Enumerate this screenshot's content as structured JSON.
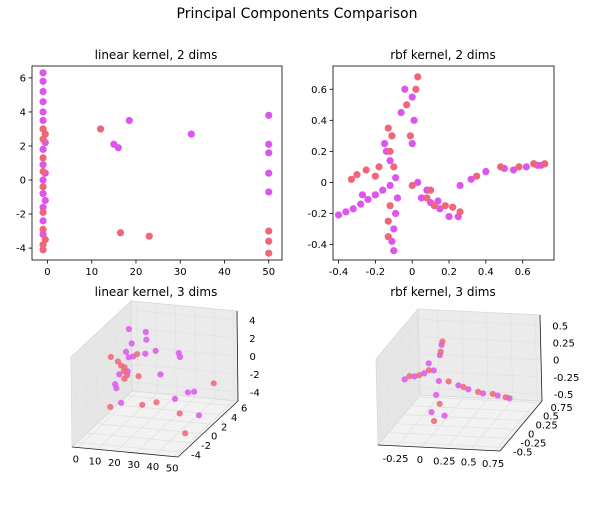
{
  "figure": {
    "title": "Principal Components Comparison",
    "colors": {
      "pink": "#ee6677",
      "magenta": "#dd55ee",
      "pane": "#f2f2f2",
      "grid": "#e2e2e2"
    }
  },
  "chart_data": [
    {
      "type": "scatter",
      "title": "linear kernel, 2 dims",
      "xlim": [
        -3.5,
        53
      ],
      "ylim": [
        -4.7,
        6.7
      ],
      "xticks": [
        0,
        10,
        20,
        30,
        40,
        50
      ],
      "yticks": [
        -4,
        -2,
        0,
        2,
        4,
        6
      ],
      "series": [
        {
          "color": "#dd55ee",
          "points": [
            [
              -1,
              6.3
            ],
            [
              -1,
              5.8
            ],
            [
              -1,
              5.2
            ],
            [
              -1,
              4.6
            ],
            [
              -1,
              4.0
            ],
            [
              -1,
              3.5
            ],
            [
              -1,
              1.8
            ],
            [
              -1,
              0.9
            ],
            [
              -1,
              0.0
            ],
            [
              -1,
              -0.8
            ],
            [
              -1,
              -1.6
            ],
            [
              -1,
              -2.4
            ],
            [
              -1,
              -3.2
            ],
            [
              -0.5,
              2.2
            ],
            [
              -0.5,
              0.4
            ],
            [
              -0.5,
              -1.2
            ],
            [
              18.5,
              3.5
            ],
            [
              32.5,
              2.7
            ],
            [
              15,
              2.1
            ],
            [
              16,
              1.9
            ],
            [
              50,
              3.8
            ],
            [
              50,
              2.1
            ],
            [
              50,
              1.6
            ],
            [
              50,
              0.4
            ],
            [
              50,
              -0.7
            ]
          ]
        },
        {
          "color": "#ee6677",
          "points": [
            [
              -1,
              3.0
            ],
            [
              -1,
              2.4
            ],
            [
              -1,
              1.3
            ],
            [
              -1,
              0.5
            ],
            [
              -1,
              -0.4
            ],
            [
              -1,
              -1.9
            ],
            [
              -1,
              -2.9
            ],
            [
              -1,
              -3.8
            ],
            [
              -1,
              -4.1
            ],
            [
              -0.5,
              -3.5
            ],
            [
              -0.5,
              2.7
            ],
            [
              12,
              3.0
            ],
            [
              16.5,
              -3.1
            ],
            [
              23,
              -3.3
            ],
            [
              50,
              -3.0
            ],
            [
              50,
              -3.6
            ],
            [
              50,
              -4.3
            ]
          ]
        }
      ]
    },
    {
      "type": "scatter",
      "title": "rbf kernel, 2 dims",
      "xlim": [
        -0.43,
        0.77
      ],
      "ylim": [
        -0.5,
        0.75
      ],
      "xticks": [
        -0.4,
        -0.2,
        0.0,
        0.2,
        0.4,
        0.6
      ],
      "yticks": [
        -0.4,
        -0.2,
        0.0,
        0.2,
        0.4,
        0.6
      ],
      "series": [
        {
          "color": "#dd55ee",
          "points": [
            [
              -0.4,
              -0.21
            ],
            [
              -0.36,
              -0.19
            ],
            [
              -0.32,
              -0.17
            ],
            [
              -0.28,
              -0.14
            ],
            [
              -0.24,
              -0.11
            ],
            [
              -0.2,
              -0.08
            ],
            [
              -0.16,
              -0.05
            ],
            [
              -0.12,
              -0.02
            ],
            [
              -0.09,
              0.03
            ],
            [
              -0.08,
              -0.1
            ],
            [
              -0.09,
              -0.2
            ],
            [
              -0.1,
              -0.3
            ],
            [
              -0.11,
              -0.38
            ],
            [
              -0.1,
              -0.44
            ],
            [
              -0.15,
              0.25
            ],
            [
              -0.14,
              0.2
            ],
            [
              -0.12,
              0.14
            ],
            [
              -0.06,
              0.45
            ],
            [
              -0.04,
              0.6
            ],
            [
              0.0,
              0.55
            ],
            [
              0.01,
              0.4
            ],
            [
              0.0,
              0.25
            ],
            [
              0.05,
              -0.1
            ],
            [
              0.1,
              -0.13
            ],
            [
              0.15,
              -0.17
            ],
            [
              0.2,
              -0.22
            ],
            [
              0.03,
              0.0
            ],
            [
              0.08,
              -0.05
            ],
            [
              0.14,
              -0.12
            ],
            [
              0.25,
              -0.22
            ],
            [
              0.26,
              -0.02
            ],
            [
              0.32,
              0.02
            ],
            [
              0.4,
              0.07
            ],
            [
              0.5,
              0.09
            ],
            [
              0.55,
              0.08
            ],
            [
              0.62,
              0.1
            ],
            [
              0.68,
              0.11
            ],
            [
              0.7,
              0.11
            ],
            [
              -0.27,
              -0.08
            ]
          ]
        },
        {
          "color": "#ee6677",
          "points": [
            [
              -0.3,
              0.05
            ],
            [
              -0.25,
              0.08
            ],
            [
              -0.2,
              0.04
            ],
            [
              -0.33,
              0.02
            ],
            [
              -0.18,
              0.1
            ],
            [
              -0.1,
              0.1
            ],
            [
              -0.11,
              0.3
            ],
            [
              -0.13,
              0.35
            ],
            [
              -0.12,
              0.2
            ],
            [
              -0.03,
              0.5
            ],
            [
              0.03,
              0.68
            ],
            [
              0.02,
              0.6
            ],
            [
              -0.01,
              0.3
            ],
            [
              -0.12,
              -0.15
            ],
            [
              -0.13,
              -0.25
            ],
            [
              -0.13,
              -0.35
            ],
            [
              0.08,
              -0.1
            ],
            [
              0.12,
              -0.15
            ],
            [
              0.18,
              -0.15
            ],
            [
              0.22,
              -0.16
            ],
            [
              0.26,
              -0.19
            ],
            [
              0.1,
              -0.05
            ],
            [
              0.0,
              -0.02
            ],
            [
              0.48,
              0.1
            ],
            [
              0.58,
              0.1
            ],
            [
              0.72,
              0.12
            ],
            [
              0.35,
              0.04
            ],
            [
              0.66,
              0.12
            ]
          ]
        }
      ]
    },
    {
      "type": "scatter",
      "title": "linear kernel, 3 dims",
      "xticks": [
        0,
        10,
        20,
        30,
        40,
        50
      ],
      "yticks": [
        -4,
        -2,
        0,
        2,
        4,
        6
      ],
      "zticks": [
        -4,
        -2,
        0,
        2,
        4
      ],
      "xlim": [
        -3,
        52
      ],
      "ylim": [
        -5,
        7
      ],
      "zlim": [
        -5,
        5
      ],
      "series": [
        {
          "color": "#dd55ee",
          "points": [
            [
              1,
              5,
              3
            ],
            [
              2,
              4,
              1
            ],
            [
              1,
              3,
              -1
            ],
            [
              3,
              5,
              0
            ],
            [
              5,
              4,
              2
            ],
            [
              2,
              2,
              -2
            ],
            [
              6,
              3,
              1
            ],
            [
              8,
              2,
              0
            ],
            [
              4,
              1,
              -1
            ],
            [
              10,
              5,
              2
            ],
            [
              12,
              4,
              1
            ],
            [
              7,
              1,
              -3
            ],
            [
              20,
              3,
              2
            ],
            [
              25,
              2,
              0
            ],
            [
              30,
              4,
              1
            ],
            [
              32,
              3,
              2
            ],
            [
              45,
              1,
              -1
            ],
            [
              47,
              -1,
              0
            ],
            [
              50,
              0,
              -3
            ],
            [
              35,
              1,
              -2
            ],
            [
              15,
              3,
              4
            ]
          ]
        },
        {
          "color": "#ee6677",
          "points": [
            [
              1,
              4,
              -2
            ],
            [
              2,
              3,
              0
            ],
            [
              3,
              2,
              1
            ],
            [
              2,
              1,
              2
            ],
            [
              5,
              3,
              -1
            ],
            [
              6,
              2,
              0
            ],
            [
              9,
              1,
              1
            ],
            [
              11,
              3,
              -1
            ],
            [
              4,
              0,
              -3
            ],
            [
              13,
              2,
              2
            ],
            [
              40,
              0,
              -3
            ],
            [
              48,
              -2,
              -4
            ],
            [
              18,
              1,
              -3
            ],
            [
              28,
              0,
              -2
            ],
            [
              50,
              3,
              -1
            ]
          ]
        }
      ]
    },
    {
      "type": "scatter",
      "title": "rbf kernel, 3 dims",
      "xticks": [
        -0.25,
        0.0,
        0.25,
        0.5,
        0.75
      ],
      "yticks": [
        -0.5,
        -0.25,
        0.0,
        0.25,
        0.5,
        0.75
      ],
      "zticks": [
        -0.5,
        -0.25,
        0.0,
        0.25,
        0.5
      ],
      "xlim": [
        -0.45,
        0.8
      ],
      "ylim": [
        -0.6,
        0.8
      ],
      "zlim": [
        -0.6,
        0.65
      ],
      "series": [
        {
          "color": "#dd55ee",
          "points": [
            [
              -0.35,
              0,
              0.05
            ],
            [
              -0.25,
              0,
              0.1
            ],
            [
              -0.15,
              0,
              0.15
            ],
            [
              -0.05,
              0,
              0.2
            ],
            [
              0.0,
              0.05,
              0.4
            ],
            [
              0.02,
              0.05,
              0.55
            ],
            [
              0.0,
              -0.1,
              -0.1
            ],
            [
              -0.02,
              -0.2,
              -0.3
            ],
            [
              0.2,
              0,
              0
            ],
            [
              0.3,
              0,
              -0.05
            ],
            [
              0.45,
              0,
              -0.1
            ],
            [
              0.6,
              0,
              -0.12
            ],
            [
              0.72,
              0,
              -0.15
            ],
            [
              0.0,
              0,
              0.05
            ],
            [
              -0.1,
              0,
              0.3
            ],
            [
              0.05,
              0,
              -0.45
            ]
          ]
        },
        {
          "color": "#ee6677",
          "points": [
            [
              -0.3,
              0,
              0.1
            ],
            [
              -0.2,
              0,
              0.12
            ],
            [
              -0.1,
              0,
              0.2
            ],
            [
              0.01,
              0.05,
              0.45
            ],
            [
              0.03,
              0.05,
              0.6
            ],
            [
              0.05,
              -0.15,
              -0.2
            ],
            [
              0.02,
              -0.25,
              -0.4
            ],
            [
              0.25,
              0,
              -0.02
            ],
            [
              0.4,
              0,
              -0.08
            ],
            [
              0.55,
              0,
              -0.1
            ],
            [
              0.68,
              0,
              -0.14
            ],
            [
              0.1,
              0,
              0.05
            ]
          ]
        }
      ]
    }
  ]
}
